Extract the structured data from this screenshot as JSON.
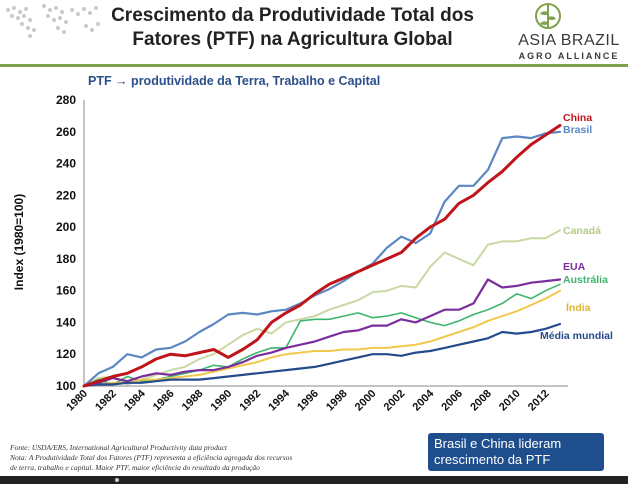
{
  "header": {
    "title_line1": "Crescimento da Produtividade Total dos",
    "title_line2": "Fatores (PTF) na Agricultura Global"
  },
  "logo": {
    "name": "ASIA BRAZIL",
    "sub": "AGRO ALLIANCE",
    "color": "#7fa24b"
  },
  "chart_data": {
    "type": "line",
    "title": "PTF → produtividade da Terra, Trabalho e Capital",
    "ylabel": "Index (1980=100)",
    "xlabel": "",
    "ylim": [
      100,
      280
    ],
    "yticks": [
      100,
      120,
      140,
      160,
      180,
      200,
      220,
      240,
      260,
      280
    ],
    "xlim": [
      1980,
      2013
    ],
    "xticks": [
      "1980",
      "1982",
      "1984",
      "1986",
      "1988",
      "1990",
      "1992",
      "1994",
      "1996",
      "1998",
      "2000",
      "2002",
      "2004",
      "2006",
      "2008",
      "2010",
      "2012"
    ],
    "grid": false,
    "series": [
      {
        "name": "China",
        "color": "#c0141b",
        "width": 3,
        "years": [
          1980,
          1981,
          1982,
          1983,
          1984,
          1985,
          1986,
          1987,
          1988,
          1989,
          1990,
          1991,
          1992,
          1993,
          1994,
          1995,
          1996,
          1997,
          1998,
          1999,
          2000,
          2001,
          2002,
          2003,
          2004,
          2005,
          2006,
          2007,
          2008,
          2009,
          2010,
          2011,
          2012,
          2013
        ],
        "values": [
          100,
          103,
          106,
          108,
          112,
          117,
          120,
          119,
          121,
          123,
          118,
          123,
          129,
          140,
          146,
          151,
          158,
          164,
          168,
          172,
          176,
          180,
          184,
          193,
          200,
          205,
          215,
          220,
          228,
          235,
          244,
          252,
          258,
          264
        ]
      },
      {
        "name": "Brasil",
        "color": "#5b87c2",
        "width": 2.2,
        "years": [
          1980,
          1981,
          1982,
          1983,
          1984,
          1985,
          1986,
          1987,
          1988,
          1989,
          1990,
          1991,
          1992,
          1993,
          1994,
          1995,
          1996,
          1997,
          1998,
          1999,
          2000,
          2001,
          2002,
          2003,
          2004,
          2005,
          2006,
          2007,
          2008,
          2009,
          2010,
          2011,
          2012,
          2013
        ],
        "values": [
          100,
          108,
          112,
          120,
          118,
          123,
          124,
          128,
          134,
          139,
          145,
          146,
          145,
          147,
          148,
          152,
          157,
          161,
          166,
          172,
          177,
          187,
          194,
          190,
          196,
          216,
          226,
          226,
          236,
          256,
          257,
          256,
          259,
          260
        ]
      },
      {
        "name": "Canadá",
        "color": "#c9d9a3",
        "width": 2,
        "years": [
          1980,
          1981,
          1982,
          1983,
          1984,
          1985,
          1986,
          1987,
          1988,
          1989,
          1990,
          1991,
          1992,
          1993,
          1994,
          1995,
          1996,
          1997,
          1998,
          1999,
          2000,
          2001,
          2002,
          2003,
          2004,
          2005,
          2006,
          2007,
          2008,
          2009,
          2010,
          2011,
          2012,
          2013
        ],
        "values": [
          100,
          105,
          106,
          101,
          104,
          107,
          110,
          112,
          117,
          120,
          126,
          132,
          136,
          133,
          140,
          142,
          144,
          148,
          151,
          154,
          159,
          160,
          163,
          162,
          175,
          184,
          180,
          176,
          189,
          191,
          191,
          193,
          193,
          198
        ]
      },
      {
        "name": "EUA",
        "color": "#7b2d9c",
        "width": 2.2,
        "years": [
          1980,
          1981,
          1982,
          1983,
          1984,
          1985,
          1986,
          1987,
          1988,
          1989,
          1990,
          1991,
          1992,
          1993,
          1994,
          1995,
          1996,
          1997,
          1998,
          1999,
          2000,
          2001,
          2002,
          2003,
          2004,
          2005,
          2006,
          2007,
          2008,
          2009,
          2010,
          2011,
          2012,
          2013
        ],
        "values": [
          100,
          102,
          105,
          103,
          106,
          108,
          107,
          109,
          110,
          110,
          112,
          115,
          119,
          121,
          124,
          126,
          128,
          131,
          134,
          135,
          138,
          138,
          142,
          140,
          144,
          148,
          148,
          152,
          167,
          162,
          163,
          165,
          166,
          167
        ]
      },
      {
        "name": "Austrália",
        "color": "#3cb56e",
        "width": 1.6,
        "years": [
          1980,
          1981,
          1982,
          1983,
          1984,
          1985,
          1986,
          1987,
          1988,
          1989,
          1990,
          1991,
          1992,
          1993,
          1994,
          1995,
          1996,
          1997,
          1998,
          1999,
          2000,
          2001,
          2002,
          2003,
          2004,
          2005,
          2006,
          2007,
          2008,
          2009,
          2010,
          2011,
          2012,
          2013
        ],
        "values": [
          100,
          104,
          101,
          106,
          103,
          104,
          106,
          108,
          110,
          113,
          112,
          117,
          121,
          124,
          124,
          141,
          142,
          142,
          144,
          146,
          143,
          144,
          146,
          143,
          140,
          138,
          141,
          145,
          148,
          152,
          158,
          155,
          160,
          164
        ]
      },
      {
        "name": "Índia",
        "color": "#f2c84b",
        "width": 2,
        "years": [
          1980,
          1981,
          1982,
          1983,
          1984,
          1985,
          1986,
          1987,
          1988,
          1989,
          1990,
          1991,
          1992,
          1993,
          1994,
          1995,
          1996,
          1997,
          1998,
          1999,
          2000,
          2001,
          2002,
          2003,
          2004,
          2005,
          2006,
          2007,
          2008,
          2009,
          2010,
          2011,
          2012,
          2013
        ],
        "values": [
          100,
          101,
          102,
          102,
          104,
          104,
          105,
          106,
          107,
          109,
          111,
          113,
          115,
          118,
          120,
          121,
          122,
          122,
          123,
          123,
          124,
          124,
          125,
          126,
          128,
          131,
          134,
          137,
          141,
          144,
          147,
          151,
          155,
          160
        ]
      },
      {
        "name": "Média mundial",
        "color": "#244b8c",
        "width": 2.2,
        "years": [
          1980,
          1981,
          1982,
          1983,
          1984,
          1985,
          1986,
          1987,
          1988,
          1989,
          1990,
          1991,
          1992,
          1993,
          1994,
          1995,
          1996,
          1997,
          1998,
          1999,
          2000,
          2001,
          2002,
          2003,
          2004,
          2005,
          2006,
          2007,
          2008,
          2009,
          2010,
          2011,
          2012,
          2013
        ],
        "values": [
          100,
          101,
          101,
          102,
          102,
          103,
          104,
          104,
          104,
          105,
          106,
          107,
          108,
          109,
          110,
          111,
          112,
          114,
          116,
          118,
          120,
          120,
          119,
          121,
          122,
          124,
          126,
          128,
          130,
          134,
          133,
          134,
          136,
          139
        ]
      }
    ],
    "labels_color_hint": [
      "#c0141b",
      "#5b87c2",
      "#b4cc84",
      "#7b2d9c",
      "#3cb56e",
      "#f2c84b",
      "#244b8c"
    ]
  },
  "footer": {
    "source_line1": "Fonte: USDA/ERS, International Agricultural Productivity data product",
    "source_line2": "Nota: A Produtividade Total dos Fatores (PTF) representa a eficiência agregada dos recursos",
    "source_line3": "de terra, trabalho e capital. Maior PTF, maior eficiência do resultado da produção",
    "callout_line1": "Brasil e China lideram",
    "callout_line2": "crescimento da PTF",
    "callout_color": "#1f4e8c"
  }
}
